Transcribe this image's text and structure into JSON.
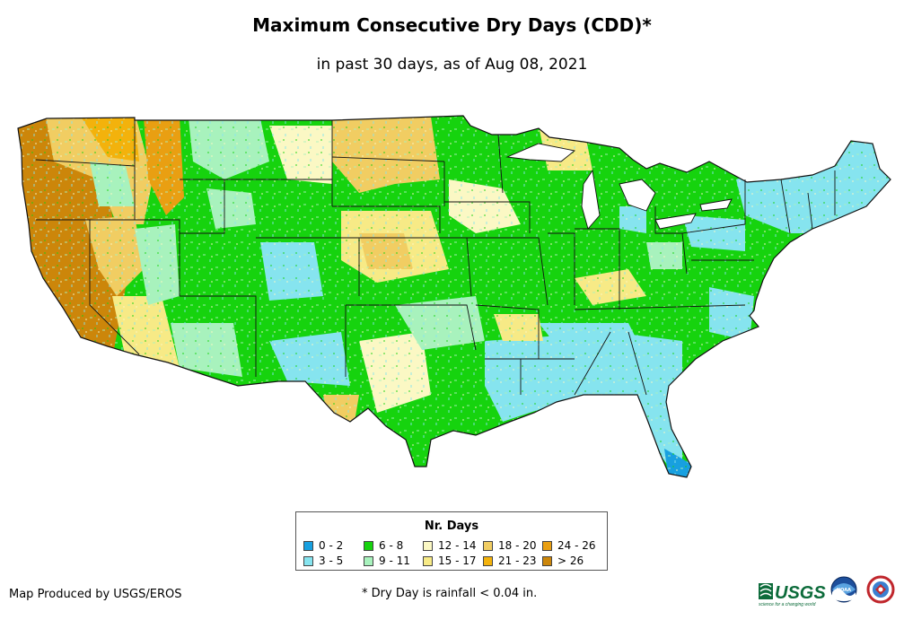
{
  "title": "Maximum Consecutive Dry Days (CDD)*",
  "subtitle": "in past 30 days, as of Aug 08, 2021",
  "legend": {
    "title": "Nr. Days",
    "items": [
      {
        "label": "0 - 2",
        "color": "#18a0e0"
      },
      {
        "label": "3 - 5",
        "color": "#86e4ef"
      },
      {
        "label": "6 - 8",
        "color": "#16d30e"
      },
      {
        "label": "9 - 11",
        "color": "#a8f2bd"
      },
      {
        "label": "12 - 14",
        "color": "#fbf8c4"
      },
      {
        "label": "15 - 17",
        "color": "#f7ea86"
      },
      {
        "label": "18 - 20",
        "color": "#f1cd62"
      },
      {
        "label": "21 - 23",
        "color": "#f3b20c"
      },
      {
        "label": "24 - 26",
        "color": "#e99f12"
      },
      {
        "label": "> 26",
        "color": "#cc860a"
      }
    ]
  },
  "credit": "Map Produced by USGS/EROS",
  "footnote": "* Dry Day is rainfall < 0.04 in.",
  "logos": {
    "usgs_text": "USGS",
    "usgs_tagline": "science for a changing world",
    "noaa_text": "NOAA"
  }
}
